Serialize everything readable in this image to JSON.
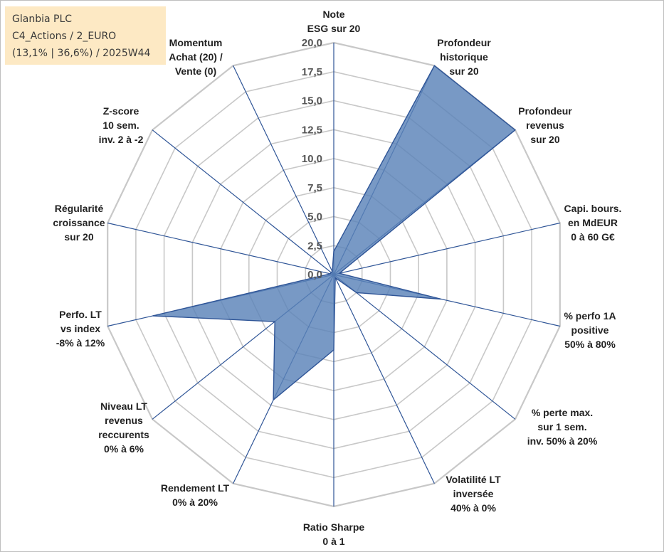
{
  "title_box": {
    "line1": "Glanbia PLC",
    "line2": "C4_Actions / 2_EURO",
    "line3": "(13,1% | 36,6%) / 2025W44"
  },
  "colors": {
    "fill": "#5a82b8",
    "stroke": "#2f5597",
    "grid": "#c8c8c8",
    "spoke": "#2f5597",
    "title_bg": "#fde9c4"
  },
  "chart_data": {
    "type": "radar",
    "title": "Glanbia PLC",
    "rlim": [
      0,
      20
    ],
    "r_ticks": [
      "0,0",
      "2,5",
      "5,0",
      "7,5",
      "10,0",
      "12,5",
      "15,0",
      "17,5",
      "20,0"
    ],
    "grid": true,
    "axes": [
      {
        "label": [
          "Note",
          "ESG sur 20"
        ],
        "value": 2.0
      },
      {
        "label": [
          "Profondeur",
          "historique",
          "sur 20"
        ],
        "value": 20.0
      },
      {
        "label": [
          "Profondeur",
          "revenus",
          "sur 20"
        ],
        "value": 20.0
      },
      {
        "label": [
          "Capi. bours.",
          "en MdEUR",
          "0 à 60 G€"
        ],
        "value": 0.5
      },
      {
        "label": [
          "% perfo 1A",
          "positive",
          "50% à 80%"
        ],
        "value": 9.5
      },
      {
        "label": [
          "% perte max.",
          "sur 1 sem.",
          "inv. 50% à 20%"
        ],
        "value": 2.5
      },
      {
        "label": [
          "Volatilité LT",
          "inversée",
          "40% à 0%"
        ],
        "value": 0.3
      },
      {
        "label": [
          "Ratio Sharpe",
          "0 à 1"
        ],
        "value": 6.5
      },
      {
        "label": [
          "Rendement LT",
          "0% à 20%"
        ],
        "value": 12.0
      },
      {
        "label": [
          "Niveau LT",
          "revenus",
          "reccurents",
          "0% à 6%"
        ],
        "value": 6.5
      },
      {
        "label": [
          "Perfo. LT",
          "vs index",
          "-8% à 12%"
        ],
        "value": 16.0
      },
      {
        "label": [
          "Régularité",
          "croissance",
          "sur 20"
        ],
        "value": 0.3
      },
      {
        "label": [
          "Z-score",
          "10 sem.",
          "inv. 2 à -2"
        ],
        "value": 0.3
      },
      {
        "label": [
          "Momentum",
          "Achat (20) /",
          "Vente (0)"
        ],
        "value": 0.3
      }
    ]
  }
}
